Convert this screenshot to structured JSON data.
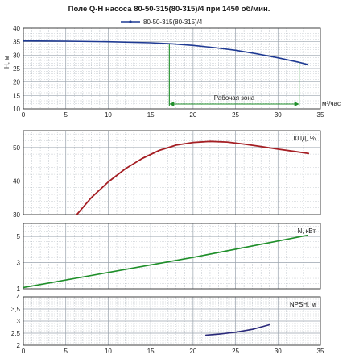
{
  "title": "Поле Q-H насоса 80-50-315(80-315)/4 при 1450 об/мин.",
  "legend": "80-50-315(80-315)/4",
  "colors": {
    "head": "#1f3a93",
    "efficiency": "#a51f24",
    "power": "#1f8f2a",
    "npsh": "#2b2a7a",
    "zone": "#1f8f2a",
    "grid": "#9aa3ad"
  },
  "chart_data": [
    {
      "type": "line",
      "name": "head",
      "ylabel": "H, м",
      "xlabel": "м³/час",
      "xlim": [
        0,
        35
      ],
      "ylim": [
        10,
        40
      ],
      "x_ticks": [
        0,
        5,
        10,
        15,
        20,
        25,
        30,
        35
      ],
      "y_ticks": [
        10,
        15,
        20,
        25,
        30,
        35,
        40
      ],
      "grid": true,
      "legend_position": "top-center",
      "series": [
        {
          "name": "80-50-315(80-315)/4",
          "x": [
            0,
            5,
            10,
            15,
            17.5,
            20,
            22.5,
            25,
            27.5,
            30,
            32.5,
            33.5
          ],
          "y": [
            35.3,
            35.2,
            35.0,
            34.6,
            34.2,
            33.6,
            32.8,
            31.8,
            30.5,
            29.0,
            27.3,
            26.5
          ]
        }
      ],
      "annotation": {
        "text": "Рабочая зона",
        "x_range": [
          17.2,
          32.5
        ],
        "arrow_y": 11.8
      }
    },
    {
      "type": "line",
      "name": "efficiency",
      "ylabel": "КПД, %",
      "xlim": [
        0,
        35
      ],
      "ylim": [
        30,
        55
      ],
      "x_ticks": [
        0,
        5,
        10,
        15,
        20,
        25,
        30,
        35
      ],
      "y_ticks": [
        30,
        40,
        50
      ],
      "grid": true,
      "series": [
        {
          "name": "КПД, %",
          "x": [
            6.3,
            8,
            10,
            12,
            14,
            16,
            18,
            20,
            22,
            24,
            26,
            28,
            30,
            32,
            33.6
          ],
          "y": [
            30.0,
            35.0,
            39.7,
            43.6,
            46.7,
            49.1,
            50.7,
            51.5,
            51.8,
            51.6,
            51.0,
            50.3,
            49.5,
            48.8,
            48.2
          ]
        }
      ]
    },
    {
      "type": "line",
      "name": "power",
      "ylabel": "N, кВт",
      "xlim": [
        0,
        35
      ],
      "ylim": [
        1,
        6
      ],
      "x_ticks": [
        0,
        5,
        10,
        15,
        20,
        25,
        30,
        35
      ],
      "y_ticks": [
        1,
        3,
        5
      ],
      "grid": true,
      "series": [
        {
          "name": "N, кВт",
          "x": [
            0,
            10,
            20,
            33.5
          ],
          "y": [
            1.1,
            2.25,
            3.4,
            5.1
          ]
        }
      ]
    },
    {
      "type": "line",
      "name": "npsh",
      "ylabel": "NPSH, м",
      "xlim": [
        0,
        35
      ],
      "ylim": [
        2,
        4
      ],
      "x_ticks": [
        0,
        5,
        10,
        15,
        20,
        25,
        30,
        35
      ],
      "y_ticks": [
        2,
        2.5,
        3,
        3.5,
        4
      ],
      "grid": true,
      "series": [
        {
          "name": "NPSH, м",
          "x": [
            21.5,
            23,
            25,
            27,
            29
          ],
          "y": [
            2.42,
            2.46,
            2.54,
            2.66,
            2.85
          ]
        }
      ]
    }
  ]
}
